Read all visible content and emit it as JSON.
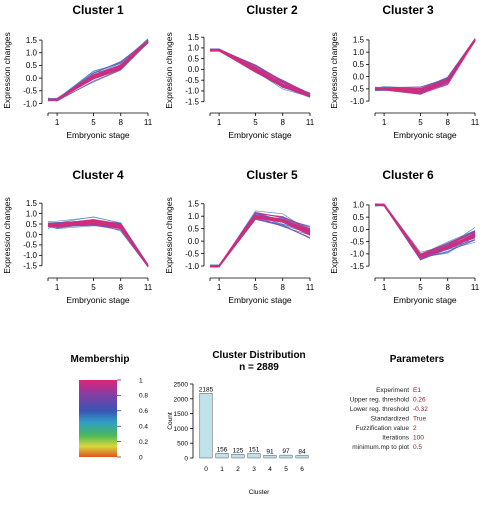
{
  "chart_data": [
    {
      "type": "line",
      "title": "Cluster 1",
      "xlabel": "Embryonic stage",
      "ylabel": "Expression changes",
      "x": [
        0,
        1,
        5,
        8,
        11
      ],
      "x_ticks": [
        "1",
        "5",
        "8",
        "11"
      ],
      "y_ticks": [
        "-1.0",
        "-0.5",
        "0.0",
        "0.5",
        "1.0",
        "1.5"
      ],
      "ylim": [
        -1.1,
        1.7
      ],
      "center": [
        -0.85,
        -0.85,
        0.05,
        0.45,
        1.45
      ],
      "spread": [
        0.08,
        0.08,
        0.3,
        0.3,
        0.12
      ]
    },
    {
      "type": "line",
      "title": "Cluster 2",
      "xlabel": "Embryonic stage",
      "ylabel": "Expression changes",
      "x": [
        0,
        1,
        5,
        8,
        11
      ],
      "x_ticks": [
        "1",
        "5",
        "8",
        "11"
      ],
      "y_ticks": [
        "-1.5",
        "-1.0",
        "-0.5",
        "0.0",
        "0.5",
        "1.0",
        "1.5"
      ],
      "ylim": [
        -1.7,
        1.6
      ],
      "center": [
        0.9,
        0.9,
        0.0,
        -0.7,
        -1.2
      ],
      "spread": [
        0.08,
        0.08,
        0.3,
        0.3,
        0.15
      ]
    },
    {
      "type": "line",
      "title": "Cluster 3",
      "xlabel": "Embryonic stage",
      "ylabel": "Expression changes",
      "x": [
        0,
        1,
        5,
        8,
        11
      ],
      "x_ticks": [
        "1",
        "5",
        "8",
        "11"
      ],
      "y_ticks": [
        "-1.0",
        "-0.5",
        "0.0",
        "0.5",
        "1.0",
        "1.5"
      ],
      "ylim": [
        -1.2,
        1.7
      ],
      "center": [
        -0.5,
        -0.5,
        -0.6,
        -0.2,
        1.5
      ],
      "spread": [
        0.1,
        0.1,
        0.3,
        0.3,
        0.1
      ]
    },
    {
      "type": "line",
      "title": "Cluster 4",
      "xlabel": "Embryonic stage",
      "ylabel": "Expression changes",
      "x": [
        0,
        1,
        5,
        8,
        11
      ],
      "x_ticks": [
        "1",
        "5",
        "8",
        "11"
      ],
      "y_ticks": [
        "-1.5",
        "-1.0",
        "-0.5",
        "0.0",
        "0.5",
        "1.0",
        "1.5"
      ],
      "ylim": [
        -1.75,
        1.65
      ],
      "center": [
        0.45,
        0.45,
        0.6,
        0.4,
        -1.5
      ],
      "spread": [
        0.2,
        0.2,
        0.3,
        0.3,
        0.08
      ]
    },
    {
      "type": "line",
      "title": "Cluster 5",
      "xlabel": "Embryonic stage",
      "ylabel": "Expression changes",
      "x": [
        0,
        1,
        5,
        8,
        11
      ],
      "x_ticks": [
        "1",
        "5",
        "8",
        "11"
      ],
      "y_ticks": [
        "-1.0",
        "-0.5",
        "0.0",
        "0.5",
        "1.0",
        "1.5"
      ],
      "ylim": [
        -1.2,
        1.65
      ],
      "center": [
        -1.0,
        -1.0,
        1.0,
        0.8,
        0.35
      ],
      "spread": [
        0.06,
        0.06,
        0.25,
        0.3,
        0.35
      ]
    },
    {
      "type": "line",
      "title": "Cluster 6",
      "xlabel": "Embryonic stage",
      "ylabel": "Expression changes",
      "x": [
        0,
        1,
        5,
        8,
        11
      ],
      "x_ticks": [
        "1",
        "5",
        "8",
        "11"
      ],
      "y_ticks": [
        "-1.5",
        "-1.0",
        "-0.5",
        "0.0",
        "0.5",
        "1.0"
      ],
      "ylim": [
        -1.7,
        1.2
      ],
      "center": [
        1.0,
        1.0,
        -1.1,
        -0.7,
        -0.2
      ],
      "spread": [
        0.06,
        0.06,
        0.2,
        0.3,
        0.3
      ]
    },
    {
      "type": "bar",
      "title": "Cluster Distribution",
      "subtitle": "n = 2889",
      "xlabel": "Cluster",
      "ylabel": "Count",
      "categories": [
        "0",
        "1",
        "2",
        "3",
        "4",
        "5",
        "6"
      ],
      "values": [
        2185,
        156,
        125,
        151,
        91,
        97,
        84
      ],
      "y_ticks": [
        "0",
        "500",
        "1000",
        "1500",
        "2000",
        "2500"
      ],
      "ylim": [
        0,
        2500
      ]
    }
  ],
  "membership": {
    "title": "Membership",
    "ticks": [
      "1",
      "0.8",
      "0.6",
      "0.4",
      "0.2",
      "0"
    ],
    "colors": [
      "#e0237a",
      "#7f3fa6",
      "#3a55b4",
      "#2f9fc4",
      "#4bb85a",
      "#d8d83a",
      "#e0541f"
    ]
  },
  "parameters": {
    "title": "Parameters",
    "rows": [
      {
        "label": "Experiment",
        "value": "E1"
      },
      {
        "label": "Upper reg. threshold",
        "value": "0.26"
      },
      {
        "label": "Lower reg. threshold",
        "value": "-0.32"
      },
      {
        "label": "Standardized",
        "value": "True"
      },
      {
        "label": "Fuzzification value",
        "value": "2"
      },
      {
        "label": "Iterations",
        "value": "100"
      },
      {
        "label": "minimum.mp to plot",
        "value": "0.5"
      }
    ]
  },
  "colors": {
    "line_high": "#d62a7a",
    "line_mid": "#7a4fb0",
    "line_low": "#3f86c8",
    "param_value": "#8b1a1a"
  }
}
